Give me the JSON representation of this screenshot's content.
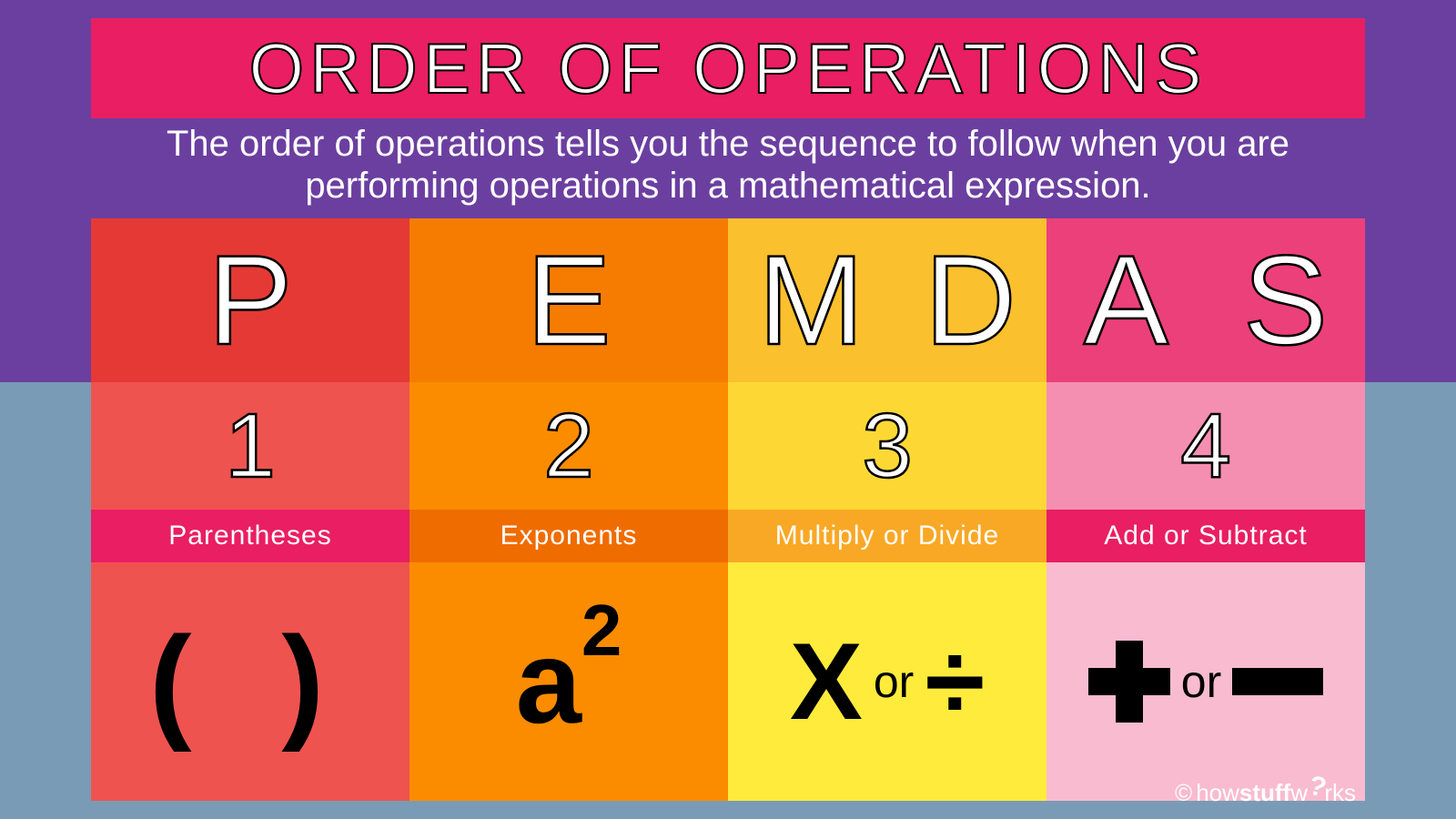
{
  "background": {
    "top_color": "#6b3fa0",
    "bottom_color": "#7a9bb5"
  },
  "title": {
    "text": "ORDER OF OPERATIONS",
    "band_color": "#e91e63",
    "text_color": "#ffffff",
    "stroke_color": "#000000",
    "fontsize": 78
  },
  "subtitle": {
    "text": "The order of operations tells you the sequence to follow when you are performing operations in a mathematical expression.",
    "text_color": "#ffffff",
    "fontsize": 40
  },
  "columns": [
    {
      "letters": [
        "P"
      ],
      "number": "1",
      "label": "Parentheses",
      "symbol_type": "parens",
      "row_colors": {
        "letter": "#e53935",
        "number": "#ef5350",
        "label": "#e91e63",
        "symbol": "#ef5350"
      }
    },
    {
      "letters": [
        "E"
      ],
      "number": "2",
      "label": "Exponents",
      "symbol_type": "a2",
      "row_colors": {
        "letter": "#f57c00",
        "number": "#fb8c00",
        "label": "#ef6c00",
        "symbol": "#fb8c00"
      }
    },
    {
      "letters": [
        "M",
        "D"
      ],
      "number": "3",
      "label": "Multiply or  Divide",
      "symbol_type": "xdiv",
      "or_text": "or",
      "row_colors": {
        "letter": "#fbc02d",
        "number": "#fdd835",
        "label": "#f9a825",
        "symbol": "#ffeb3b"
      }
    },
    {
      "letters": [
        "A",
        "S"
      ],
      "number": "4",
      "label": "Add  or Subtract",
      "symbol_type": "plusminus",
      "or_text": "or",
      "row_colors": {
        "letter": "#ec407a",
        "number": "#f48fb1",
        "label": "#e91e63",
        "symbol": "#f8bbd0"
      }
    }
  ],
  "letter_style": {
    "fontsize": 140,
    "text_color": "#ffffff",
    "stroke_color": "#000000"
  },
  "number_style": {
    "fontsize": 100,
    "text_color": "#ffffff",
    "stroke_color": "#000000"
  },
  "label_style": {
    "fontsize": 30,
    "text_color": "#ffffff"
  },
  "symbol_style": {
    "color": "#000000"
  },
  "credit": {
    "copyright": "©",
    "prefix": "how",
    "bold": "stuff",
    "suffix1": "w",
    "q": "?",
    "suffix2": "rks",
    "text_color": "#ffffff"
  }
}
